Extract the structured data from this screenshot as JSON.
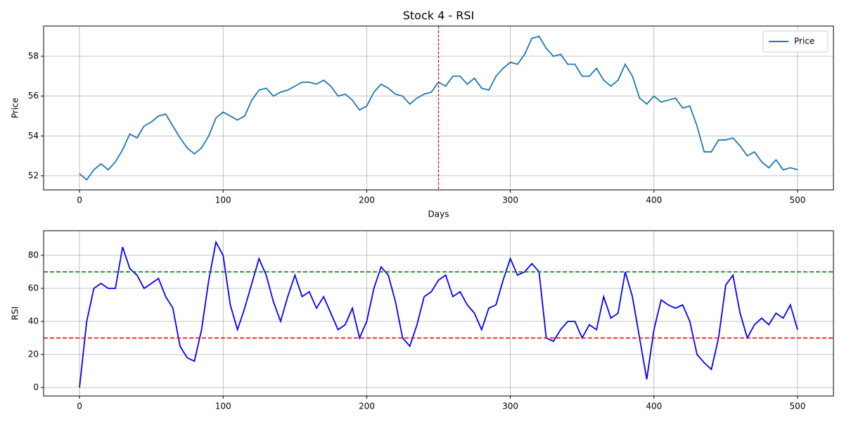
{
  "chart_data": [
    {
      "type": "line",
      "title": "Stock 4 - RSI",
      "xlabel": "Days",
      "ylabel": "Price",
      "x": [
        0,
        5,
        10,
        15,
        20,
        25,
        30,
        35,
        40,
        45,
        50,
        55,
        60,
        65,
        70,
        75,
        80,
        85,
        90,
        95,
        100,
        105,
        110,
        115,
        120,
        125,
        130,
        135,
        140,
        145,
        150,
        155,
        160,
        165,
        170,
        175,
        180,
        185,
        190,
        195,
        200,
        205,
        210,
        215,
        220,
        225,
        230,
        235,
        240,
        245,
        250,
        255,
        260,
        265,
        270,
        275,
        280,
        285,
        290,
        295,
        300,
        305,
        310,
        315,
        320,
        325,
        330,
        335,
        340,
        345,
        350,
        355,
        360,
        365,
        370,
        375,
        380,
        385,
        390,
        395,
        400,
        405,
        410,
        415,
        420,
        425,
        430,
        435,
        440,
        445,
        450,
        455,
        460,
        465,
        470,
        475,
        480,
        485,
        490,
        495,
        500
      ],
      "series": [
        {
          "name": "Price",
          "color": "#1f77b4",
          "values": [
            52.1,
            51.8,
            52.3,
            52.6,
            52.3,
            52.7,
            53.3,
            54.1,
            53.9,
            54.5,
            54.7,
            55.0,
            55.1,
            54.5,
            53.9,
            53.4,
            53.1,
            53.4,
            54.0,
            54.9,
            55.2,
            55.0,
            54.8,
            55.0,
            55.8,
            56.3,
            56.4,
            56.0,
            56.2,
            56.3,
            56.5,
            56.7,
            56.7,
            56.6,
            56.8,
            56.5,
            56.0,
            56.1,
            55.8,
            55.3,
            55.5,
            56.2,
            56.6,
            56.4,
            56.1,
            56.0,
            55.6,
            55.9,
            56.1,
            56.2,
            56.7,
            56.5,
            57.0,
            57.0,
            56.6,
            56.9,
            56.4,
            56.3,
            57.0,
            57.4,
            57.7,
            57.6,
            58.1,
            58.9,
            59.0,
            58.4,
            58.0,
            58.1,
            57.6,
            57.6,
            57.0,
            57.0,
            57.4,
            56.8,
            56.5,
            56.8,
            57.6,
            57.0,
            55.9,
            55.6,
            56.0,
            55.7,
            55.8,
            55.9,
            55.4,
            55.5,
            54.5,
            53.2,
            53.2,
            53.8,
            53.8,
            53.9,
            53.5,
            53.0,
            53.2,
            52.7,
            52.4,
            52.8,
            52.3,
            52.4,
            52.3
          ]
        }
      ],
      "vlines": [
        {
          "x": 250,
          "color": "#ff0000"
        }
      ],
      "xlim": [
        -25,
        525
      ],
      "ylim": [
        51.29,
        59.52
      ],
      "xticks": [
        0,
        100,
        200,
        300,
        400,
        500
      ],
      "yticks": [
        52,
        54,
        56,
        58
      ],
      "grid": true,
      "legend": "upper right"
    },
    {
      "type": "line",
      "ylabel": "RSI",
      "x": [
        0,
        5,
        10,
        15,
        20,
        25,
        30,
        35,
        40,
        45,
        50,
        55,
        60,
        65,
        70,
        75,
        80,
        85,
        90,
        95,
        100,
        105,
        110,
        115,
        120,
        125,
        130,
        135,
        140,
        145,
        150,
        155,
        160,
        165,
        170,
        175,
        180,
        185,
        190,
        195,
        200,
        205,
        210,
        215,
        220,
        225,
        230,
        235,
        240,
        245,
        250,
        255,
        260,
        265,
        270,
        275,
        280,
        285,
        290,
        295,
        300,
        305,
        310,
        315,
        320,
        325,
        330,
        335,
        340,
        345,
        350,
        355,
        360,
        365,
        370,
        375,
        380,
        385,
        390,
        395,
        400,
        405,
        410,
        415,
        420,
        425,
        430,
        435,
        440,
        445,
        450,
        455,
        460,
        465,
        470,
        475,
        480,
        485,
        490,
        495,
        500
      ],
      "series": [
        {
          "color": "#0000ff",
          "values": [
            0,
            40,
            60,
            63,
            60,
            60,
            85,
            72,
            68,
            60,
            63,
            66,
            55,
            48,
            25,
            18,
            16,
            35,
            65,
            88,
            80,
            50,
            35,
            48,
            63,
            78,
            68,
            52,
            40,
            55,
            68,
            55,
            58,
            48,
            55,
            45,
            35,
            38,
            48,
            30,
            40,
            60,
            73,
            68,
            52,
            30,
            25,
            38,
            55,
            58,
            65,
            68,
            55,
            58,
            50,
            45,
            35,
            48,
            50,
            65,
            78,
            68,
            70,
            75,
            70,
            30,
            28,
            35,
            40,
            40,
            30,
            38,
            35,
            55,
            42,
            45,
            70,
            55,
            30,
            5,
            35,
            53,
            50,
            48,
            50,
            40,
            20,
            15,
            11,
            30,
            62,
            68,
            45,
            30,
            38,
            42,
            38,
            45,
            42,
            50,
            35
          ]
        }
      ],
      "hlines": [
        {
          "y": 70,
          "color": "#008000"
        },
        {
          "y": 30,
          "color": "#ff0000"
        }
      ],
      "xlim": [
        -25,
        525
      ],
      "ylim": [
        -5.1,
        94.9
      ],
      "xticks": [
        0,
        100,
        200,
        300,
        400,
        500
      ],
      "yticks": [
        0,
        20,
        40,
        60,
        80
      ],
      "grid": true
    }
  ]
}
